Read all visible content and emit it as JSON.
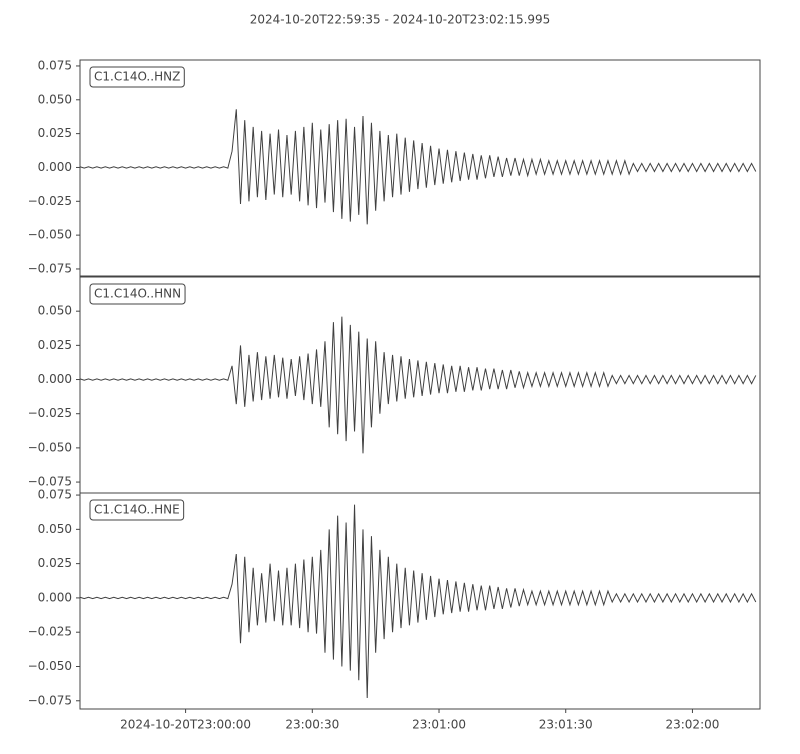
{
  "chart_data": {
    "type": "line",
    "title": "2024-10-20T22:59:35  -  2024-10-20T23:02:15.995",
    "xlim": [
      "22:59:35",
      "23:02:15.995"
    ],
    "xticks": [
      {
        "value": "23:00:00",
        "label": "2024-10-20T23:00:00"
      },
      {
        "value": "23:00:30",
        "label": "23:00:30"
      },
      {
        "value": "23:01:00",
        "label": "23:01:00"
      },
      {
        "value": "23:01:30",
        "label": "23:01:30"
      },
      {
        "value": "23:02:00",
        "label": "23:02:00"
      }
    ],
    "x": [
      "22:59:35",
      "22:59:36",
      "22:59:37",
      "22:59:38",
      "22:59:39",
      "22:59:40",
      "22:59:41",
      "22:59:42",
      "22:59:43",
      "22:59:44",
      "22:59:45",
      "22:59:46",
      "22:59:47",
      "22:59:48",
      "22:59:49",
      "22:59:50",
      "22:59:51",
      "22:59:52",
      "22:59:53",
      "22:59:54",
      "22:59:55",
      "22:59:56",
      "22:59:57",
      "22:59:58",
      "22:59:59",
      "23:00:00",
      "23:00:01",
      "23:00:02",
      "23:00:03",
      "23:00:04",
      "23:00:05",
      "23:00:06",
      "23:00:07",
      "23:00:08",
      "23:00:09",
      "23:00:10",
      "23:00:11",
      "23:00:12",
      "23:00:13",
      "23:00:14",
      "23:00:15",
      "23:00:16",
      "23:00:17",
      "23:00:18",
      "23:00:19",
      "23:00:20",
      "23:00:21",
      "23:00:22",
      "23:00:23",
      "23:00:24",
      "23:00:25",
      "23:00:26",
      "23:00:27",
      "23:00:28",
      "23:00:29",
      "23:00:30",
      "23:00:31",
      "23:00:32",
      "23:00:33",
      "23:00:34",
      "23:00:35",
      "23:00:36",
      "23:00:37",
      "23:00:38",
      "23:00:39",
      "23:00:40",
      "23:00:41",
      "23:00:42",
      "23:00:43",
      "23:00:44",
      "23:00:45",
      "23:00:46",
      "23:00:47",
      "23:00:48",
      "23:00:49",
      "23:00:50",
      "23:00:51",
      "23:00:52",
      "23:00:53",
      "23:00:54",
      "23:00:55",
      "23:00:56",
      "23:00:57",
      "23:00:58",
      "23:00:59",
      "23:01:00",
      "23:01:01",
      "23:01:02",
      "23:01:03",
      "23:01:04",
      "23:01:05",
      "23:01:06",
      "23:01:07",
      "23:01:08",
      "23:01:09",
      "23:01:10",
      "23:01:11",
      "23:01:12",
      "23:01:13",
      "23:01:14",
      "23:01:15",
      "23:01:16",
      "23:01:17",
      "23:01:18",
      "23:01:19",
      "23:01:20",
      "23:01:21",
      "23:01:22",
      "23:01:23",
      "23:01:24",
      "23:01:25",
      "23:01:26",
      "23:01:27",
      "23:01:28",
      "23:01:29",
      "23:01:30",
      "23:01:31",
      "23:01:32",
      "23:01:33",
      "23:01:34",
      "23:01:35",
      "23:01:36",
      "23:01:37",
      "23:01:38",
      "23:01:39",
      "23:01:40",
      "23:01:41",
      "23:01:42",
      "23:01:43",
      "23:01:44",
      "23:01:45",
      "23:01:46",
      "23:01:47",
      "23:01:48",
      "23:01:49",
      "23:01:50",
      "23:01:51",
      "23:01:52",
      "23:01:53",
      "23:01:54",
      "23:01:55",
      "23:01:56",
      "23:01:57",
      "23:01:58",
      "23:01:59",
      "23:02:00",
      "23:02:01",
      "23:02:02",
      "23:02:03",
      "23:02:04",
      "23:02:05",
      "23:02:06",
      "23:02:07",
      "23:02:08",
      "23:02:09",
      "23:02:10",
      "23:02:11",
      "23:02:12",
      "23:02:13",
      "23:02:14",
      "23:02:15"
    ],
    "series": [
      {
        "name": "C1.C14O..HNZ",
        "color": "#404040",
        "ylim": [
          -0.0802,
          0.0794
        ],
        "yticks": [
          {
            "value": 0.075,
            "label": "0.075"
          },
          {
            "value": 0.05,
            "label": "0.050"
          },
          {
            "value": 0.025,
            "label": "0.025"
          },
          {
            "value": 0,
            "label": "0.000"
          },
          {
            "value": -0.025,
            "label": "−0.025"
          },
          {
            "value": -0.05,
            "label": "−0.050"
          },
          {
            "value": -0.075,
            "label": "−0.075"
          }
        ],
        "values": [
          0.0005,
          -0.0005,
          0.0005,
          -0.0005,
          0.0005,
          -0.0005,
          0.0005,
          -0.0005,
          0.0005,
          -0.0005,
          0.0005,
          -0.0005,
          0.0005,
          -0.0005,
          0.0005,
          -0.0005,
          0.0005,
          -0.0005,
          0.0005,
          -0.0005,
          0.0005,
          -0.0005,
          0.0005,
          -0.0005,
          0.0005,
          -0.0005,
          0.0005,
          -0.0005,
          0.0005,
          -0.0005,
          0.0005,
          -0.0005,
          0.0005,
          -0.0005,
          0.0005,
          -0.0005,
          0.012,
          0.043,
          -0.027,
          0.035,
          -0.025,
          0.03,
          -0.022,
          0.027,
          -0.024,
          0.025,
          -0.02,
          0.028,
          -0.022,
          0.024,
          -0.02,
          0.027,
          -0.025,
          0.03,
          -0.028,
          0.033,
          -0.03,
          0.028,
          -0.026,
          0.032,
          -0.033,
          0.035,
          -0.038,
          0.036,
          -0.04,
          0.03,
          -0.035,
          0.038,
          -0.042,
          0.033,
          -0.032,
          0.027,
          -0.025,
          0.024,
          -0.022,
          0.025,
          -0.02,
          0.022,
          -0.018,
          0.02,
          -0.016,
          0.018,
          -0.015,
          0.016,
          -0.013,
          0.014,
          -0.012,
          0.013,
          -0.011,
          0.012,
          -0.01,
          0.011,
          -0.009,
          0.01,
          -0.009,
          0.009,
          -0.008,
          0.009,
          -0.007,
          0.008,
          -0.007,
          0.007,
          -0.006,
          0.007,
          -0.006,
          0.006,
          -0.006,
          0.006,
          -0.005,
          0.006,
          -0.005,
          0.005,
          -0.005,
          0.005,
          -0.005,
          0.005,
          -0.005,
          0.005,
          -0.005,
          0.005,
          -0.005,
          0.005,
          -0.005,
          0.005,
          -0.005,
          0.005,
          -0.005,
          0.005,
          -0.005,
          0.005,
          -0.005,
          0.003,
          -0.003,
          0.003,
          -0.003,
          0.003,
          -0.003,
          0.003,
          -0.003,
          0.003,
          -0.003,
          0.003,
          -0.003,
          0.003,
          -0.003,
          0.003,
          -0.003,
          0.003,
          -0.003,
          0.003,
          -0.003,
          0.003,
          -0.003,
          0.003,
          -0.003,
          0.003,
          -0.003,
          0.003,
          -0.003,
          0.003,
          -0.003
        ]
      },
      {
        "name": "C1.C14O..HNN",
        "color": "#404040",
        "ylim": [
          -0.083,
          0.075
        ],
        "yticks": [
          {
            "value": 0.05,
            "label": "0.050"
          },
          {
            "value": 0.025,
            "label": "0.025"
          },
          {
            "value": 0,
            "label": "0.000"
          },
          {
            "value": -0.025,
            "label": "−0.025"
          },
          {
            "value": -0.05,
            "label": "−0.050"
          },
          {
            "value": -0.075,
            "label": "−0.075"
          }
        ],
        "values": [
          0.0005,
          -0.0005,
          0.0005,
          -0.0005,
          0.0005,
          -0.0005,
          0.0005,
          -0.0005,
          0.0005,
          -0.0005,
          0.0005,
          -0.0005,
          0.0005,
          -0.0005,
          0.0005,
          -0.0005,
          0.0005,
          -0.0005,
          0.0005,
          -0.0005,
          0.0005,
          -0.0005,
          0.0005,
          -0.0005,
          0.0005,
          -0.0005,
          0.0005,
          -0.0005,
          0.0005,
          -0.0005,
          0.0005,
          -0.0005,
          0.0005,
          -0.0005,
          0.0005,
          -0.0005,
          0.01,
          -0.018,
          0.025,
          -0.02,
          0.018,
          -0.016,
          0.02,
          -0.015,
          0.017,
          -0.014,
          0.018,
          -0.013,
          0.016,
          -0.014,
          0.015,
          -0.012,
          0.017,
          -0.015,
          0.019,
          -0.018,
          0.022,
          -0.02,
          0.028,
          -0.035,
          0.042,
          -0.04,
          0.046,
          -0.045,
          0.04,
          -0.038,
          0.035,
          -0.054,
          0.03,
          -0.035,
          0.028,
          -0.025,
          0.02,
          -0.018,
          0.018,
          -0.016,
          0.017,
          -0.014,
          0.015,
          -0.013,
          0.014,
          -0.012,
          0.013,
          -0.011,
          0.012,
          -0.01,
          0.011,
          -0.01,
          0.01,
          -0.009,
          0.01,
          -0.009,
          0.009,
          -0.008,
          0.009,
          -0.008,
          0.008,
          -0.007,
          0.008,
          -0.007,
          0.007,
          -0.007,
          0.007,
          -0.006,
          0.006,
          -0.006,
          0.005,
          -0.005,
          0.005,
          -0.005,
          0.005,
          -0.005,
          0.005,
          -0.005,
          0.005,
          -0.005,
          0.005,
          -0.005,
          0.005,
          -0.005,
          0.005,
          -0.005,
          0.005,
          -0.005,
          0.005,
          -0.005,
          0.003,
          -0.003,
          0.003,
          -0.003,
          0.003,
          -0.003,
          0.003,
          -0.003,
          0.003,
          -0.003,
          0.003,
          -0.003,
          0.003,
          -0.003,
          0.003,
          -0.003,
          0.003,
          -0.003,
          0.003,
          -0.003,
          0.003,
          -0.003,
          0.003,
          -0.003,
          0.003,
          -0.003,
          0.003,
          -0.003,
          0.003,
          -0.003,
          0.003,
          -0.003,
          0.003,
          -0.003,
          0.003
        ]
      },
      {
        "name": "C1.C14O..HNE",
        "color": "#404040",
        "ylim": [
          -0.081,
          0.0765
        ],
        "yticks": [
          {
            "value": 0.075,
            "label": "0.075"
          },
          {
            "value": 0.05,
            "label": "0.050"
          },
          {
            "value": 0.025,
            "label": "0.025"
          },
          {
            "value": 0,
            "label": "0.000"
          },
          {
            "value": -0.025,
            "label": "−0.025"
          },
          {
            "value": -0.05,
            "label": "−0.050"
          },
          {
            "value": -0.075,
            "label": "−0.075"
          }
        ],
        "values": [
          0.0005,
          -0.0005,
          0.0005,
          -0.0005,
          0.0005,
          -0.0005,
          0.0005,
          -0.0005,
          0.0005,
          -0.0005,
          0.0005,
          -0.0005,
          0.0005,
          -0.0005,
          0.0005,
          -0.0005,
          0.0005,
          -0.0005,
          0.0005,
          -0.0005,
          0.0005,
          -0.0005,
          0.0005,
          -0.0005,
          0.0005,
          -0.0005,
          0.0005,
          -0.0005,
          0.0005,
          -0.0005,
          0.0005,
          -0.0005,
          0.0005,
          -0.0005,
          0.0005,
          -0.0005,
          0.01,
          0.032,
          -0.033,
          0.03,
          -0.025,
          0.022,
          -0.02,
          0.018,
          -0.018,
          0.025,
          -0.017,
          0.02,
          -0.02,
          0.022,
          -0.02,
          0.025,
          -0.022,
          0.028,
          -0.025,
          0.03,
          -0.026,
          0.035,
          -0.04,
          0.05,
          -0.045,
          0.06,
          -0.05,
          0.055,
          -0.053,
          0.068,
          -0.06,
          0.05,
          -0.073,
          0.045,
          -0.04,
          0.035,
          -0.03,
          0.03,
          -0.025,
          0.025,
          -0.022,
          0.022,
          -0.02,
          0.02,
          -0.018,
          0.018,
          -0.016,
          0.016,
          -0.014,
          0.014,
          -0.012,
          0.013,
          -0.011,
          0.012,
          -0.01,
          0.011,
          -0.01,
          0.01,
          -0.009,
          0.009,
          -0.009,
          0.009,
          -0.008,
          0.008,
          -0.008,
          0.007,
          -0.007,
          0.007,
          -0.006,
          0.006,
          -0.005,
          0.005,
          -0.005,
          0.005,
          -0.005,
          0.005,
          -0.005,
          0.005,
          -0.005,
          0.005,
          -0.005,
          0.005,
          -0.005,
          0.005,
          -0.005,
          0.005,
          -0.005,
          0.005,
          -0.005,
          0.005,
          -0.003,
          0.003,
          -0.003,
          0.003,
          -0.003,
          0.003,
          -0.003,
          0.003,
          -0.003,
          0.003,
          -0.003,
          0.003,
          -0.003,
          0.003,
          -0.003,
          0.003,
          -0.003,
          0.003,
          -0.003,
          0.003,
          -0.003,
          0.003,
          -0.003,
          0.003,
          -0.003,
          0.003,
          -0.003,
          0.003,
          -0.003,
          0.003,
          -0.003,
          0.003,
          -0.003,
          0.003,
          -0.003
        ]
      }
    ]
  }
}
